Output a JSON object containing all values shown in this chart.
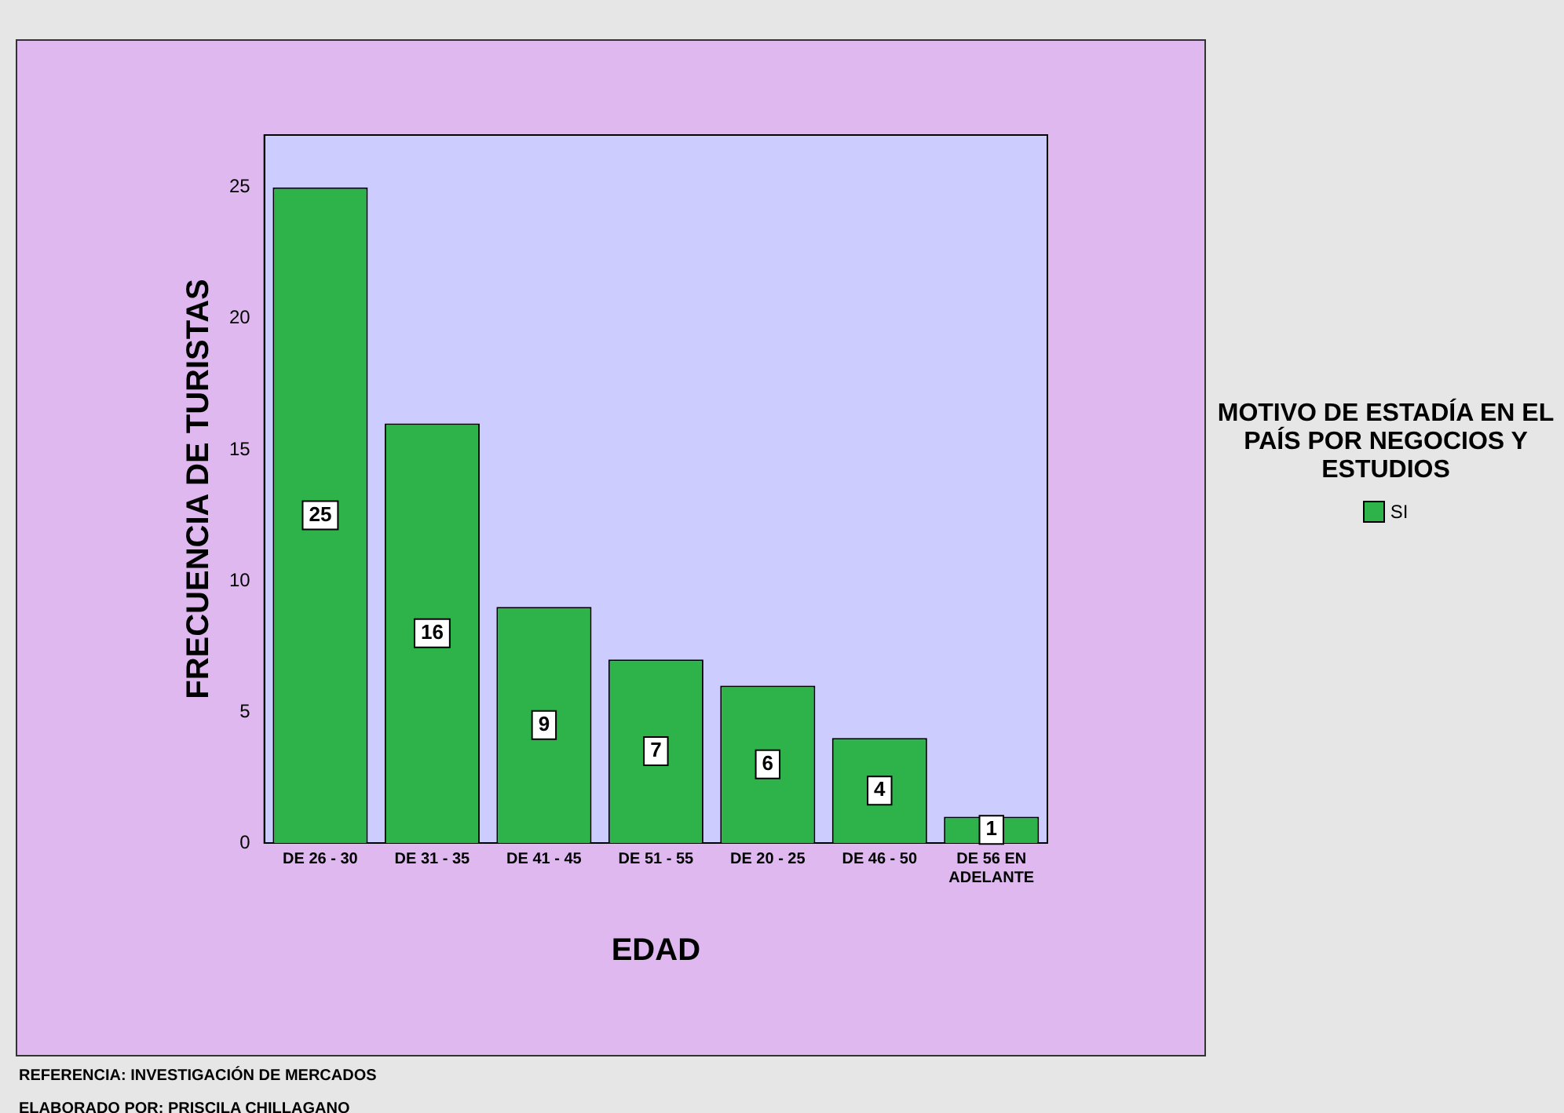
{
  "chart_data": {
    "type": "bar",
    "xlabel": "EDAD",
    "ylabel": "FRECUENCIA DE TURISTAS",
    "legend_title": "MOTIVO DE ESTADÍA EN EL PAÍS POR NEGOCIOS Y ESTUDIOS",
    "categories": [
      "DE 26 - 30",
      "DE 31 - 35",
      "DE 41 - 45",
      "DE 51 - 55",
      "DE 20 - 25",
      "DE 46 - 50",
      "DE 56 EN ADELANTE"
    ],
    "series": [
      {
        "name": "SI",
        "color": "#2db34a",
        "values": [
          25,
          16,
          9,
          7,
          6,
          4,
          1
        ]
      }
    ],
    "ylim": [
      0,
      27
    ],
    "yticks": [
      0,
      5,
      10,
      15,
      20,
      25
    ],
    "grid": false,
    "legend": "right",
    "data_labels": true,
    "annotations": [
      "REFERENCIA: INVESTIGACIÓN DE MERCADOS",
      "ELABORADO POR: PRISCILA CHILLAGANO"
    ]
  }
}
